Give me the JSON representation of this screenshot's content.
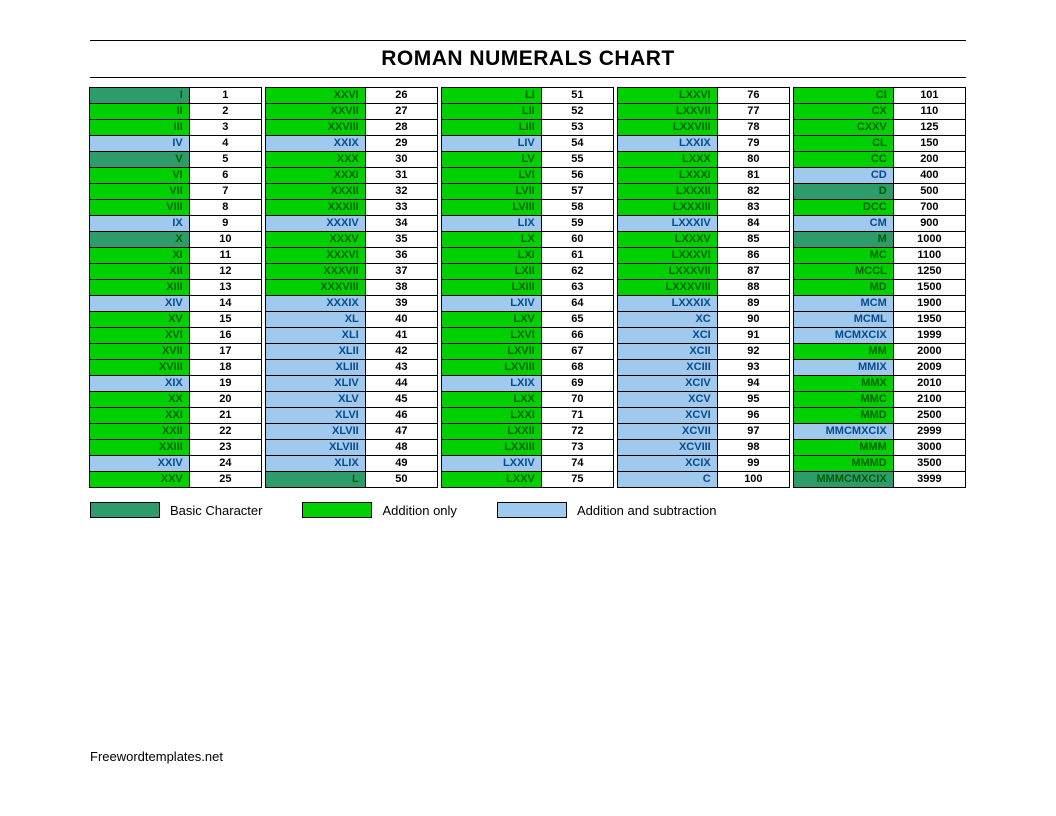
{
  "title": "ROMAN NUMERALS CHART",
  "footer": "Freewordtemplates.net",
  "colors": {
    "basic": "#2e9b6b",
    "add": "#00d000",
    "sub": "#9fc9ed",
    "text_dark": "#006000",
    "text_blue": "#0b4a8a",
    "border": "#000000",
    "background": "#ffffff"
  },
  "legend": [
    {
      "color": "basic",
      "label": "Basic Character"
    },
    {
      "color": "add",
      "label": "Addition only"
    },
    {
      "color": "sub",
      "label": "Addition and subtraction"
    }
  ],
  "columns": [
    [
      {
        "r": "I",
        "n": 1,
        "c": "basic"
      },
      {
        "r": "II",
        "n": 2,
        "c": "add"
      },
      {
        "r": "III",
        "n": 3,
        "c": "add"
      },
      {
        "r": "IV",
        "n": 4,
        "c": "sub"
      },
      {
        "r": "V",
        "n": 5,
        "c": "basic"
      },
      {
        "r": "VI",
        "n": 6,
        "c": "add"
      },
      {
        "r": "VII",
        "n": 7,
        "c": "add"
      },
      {
        "r": "VIII",
        "n": 8,
        "c": "add"
      },
      {
        "r": "IX",
        "n": 9,
        "c": "sub"
      },
      {
        "r": "X",
        "n": 10,
        "c": "basic"
      },
      {
        "r": "XI",
        "n": 11,
        "c": "add"
      },
      {
        "r": "XII",
        "n": 12,
        "c": "add"
      },
      {
        "r": "XIII",
        "n": 13,
        "c": "add"
      },
      {
        "r": "XIV",
        "n": 14,
        "c": "sub"
      },
      {
        "r": "XV",
        "n": 15,
        "c": "add"
      },
      {
        "r": "XVI",
        "n": 16,
        "c": "add"
      },
      {
        "r": "XVII",
        "n": 17,
        "c": "add"
      },
      {
        "r": "XVIII",
        "n": 18,
        "c": "add"
      },
      {
        "r": "XIX",
        "n": 19,
        "c": "sub"
      },
      {
        "r": "XX",
        "n": 20,
        "c": "add"
      },
      {
        "r": "XXI",
        "n": 21,
        "c": "add"
      },
      {
        "r": "XXII",
        "n": 22,
        "c": "add"
      },
      {
        "r": "XXIII",
        "n": 23,
        "c": "add"
      },
      {
        "r": "XXIV",
        "n": 24,
        "c": "sub"
      },
      {
        "r": "XXV",
        "n": 25,
        "c": "add"
      }
    ],
    [
      {
        "r": "XXVI",
        "n": 26,
        "c": "add"
      },
      {
        "r": "XXVII",
        "n": 27,
        "c": "add"
      },
      {
        "r": "XXVIII",
        "n": 28,
        "c": "add"
      },
      {
        "r": "XXIX",
        "n": 29,
        "c": "sub"
      },
      {
        "r": "XXX",
        "n": 30,
        "c": "add"
      },
      {
        "r": "XXXI",
        "n": 31,
        "c": "add"
      },
      {
        "r": "XXXII",
        "n": 32,
        "c": "add"
      },
      {
        "r": "XXXIII",
        "n": 33,
        "c": "add"
      },
      {
        "r": "XXXIV",
        "n": 34,
        "c": "sub"
      },
      {
        "r": "XXXV",
        "n": 35,
        "c": "add"
      },
      {
        "r": "XXXVI",
        "n": 36,
        "c": "add"
      },
      {
        "r": "XXXVII",
        "n": 37,
        "c": "add"
      },
      {
        "r": "XXXVIII",
        "n": 38,
        "c": "add"
      },
      {
        "r": "XXXIX",
        "n": 39,
        "c": "sub"
      },
      {
        "r": "XL",
        "n": 40,
        "c": "sub"
      },
      {
        "r": "XLI",
        "n": 41,
        "c": "sub"
      },
      {
        "r": "XLII",
        "n": 42,
        "c": "sub"
      },
      {
        "r": "XLIII",
        "n": 43,
        "c": "sub"
      },
      {
        "r": "XLIV",
        "n": 44,
        "c": "sub"
      },
      {
        "r": "XLV",
        "n": 45,
        "c": "sub"
      },
      {
        "r": "XLVI",
        "n": 46,
        "c": "sub"
      },
      {
        "r": "XLVII",
        "n": 47,
        "c": "sub"
      },
      {
        "r": "XLVIII",
        "n": 48,
        "c": "sub"
      },
      {
        "r": "XLIX",
        "n": 49,
        "c": "sub"
      },
      {
        "r": "L",
        "n": 50,
        "c": "basic"
      }
    ],
    [
      {
        "r": "LI",
        "n": 51,
        "c": "add"
      },
      {
        "r": "LII",
        "n": 52,
        "c": "add"
      },
      {
        "r": "LIII",
        "n": 53,
        "c": "add"
      },
      {
        "r": "LIV",
        "n": 54,
        "c": "sub"
      },
      {
        "r": "LV",
        "n": 55,
        "c": "add"
      },
      {
        "r": "LVI",
        "n": 56,
        "c": "add"
      },
      {
        "r": "LVII",
        "n": 57,
        "c": "add"
      },
      {
        "r": "LVIII",
        "n": 58,
        "c": "add"
      },
      {
        "r": "LIX",
        "n": 59,
        "c": "sub"
      },
      {
        "r": "LX",
        "n": 60,
        "c": "add"
      },
      {
        "r": "LXI",
        "n": 61,
        "c": "add"
      },
      {
        "r": "LXII",
        "n": 62,
        "c": "add"
      },
      {
        "r": "LXIII",
        "n": 63,
        "c": "add"
      },
      {
        "r": "LXIV",
        "n": 64,
        "c": "sub"
      },
      {
        "r": "LXV",
        "n": 65,
        "c": "add"
      },
      {
        "r": "LXVI",
        "n": 66,
        "c": "add"
      },
      {
        "r": "LXVII",
        "n": 67,
        "c": "add"
      },
      {
        "r": "LXVIII",
        "n": 68,
        "c": "add"
      },
      {
        "r": "LXIX",
        "n": 69,
        "c": "sub"
      },
      {
        "r": "LXX",
        "n": 70,
        "c": "add"
      },
      {
        "r": "LXXI",
        "n": 71,
        "c": "add"
      },
      {
        "r": "LXXII",
        "n": 72,
        "c": "add"
      },
      {
        "r": "LXXIII",
        "n": 73,
        "c": "add"
      },
      {
        "r": "LXXIV",
        "n": 74,
        "c": "sub"
      },
      {
        "r": "LXXV",
        "n": 75,
        "c": "add"
      }
    ],
    [
      {
        "r": "LXXVI",
        "n": 76,
        "c": "add"
      },
      {
        "r": "LXXVII",
        "n": 77,
        "c": "add"
      },
      {
        "r": "LXXVIII",
        "n": 78,
        "c": "add"
      },
      {
        "r": "LXXIX",
        "n": 79,
        "c": "sub"
      },
      {
        "r": "LXXX",
        "n": 80,
        "c": "add"
      },
      {
        "r": "LXXXI",
        "n": 81,
        "c": "add"
      },
      {
        "r": "LXXXII",
        "n": 82,
        "c": "add"
      },
      {
        "r": "LXXXIII",
        "n": 83,
        "c": "add"
      },
      {
        "r": "LXXXIV",
        "n": 84,
        "c": "sub"
      },
      {
        "r": "LXXXV",
        "n": 85,
        "c": "add"
      },
      {
        "r": "LXXXVI",
        "n": 86,
        "c": "add"
      },
      {
        "r": "LXXXVII",
        "n": 87,
        "c": "add"
      },
      {
        "r": "LXXXVIII",
        "n": 88,
        "c": "add"
      },
      {
        "r": "LXXXIX",
        "n": 89,
        "c": "sub"
      },
      {
        "r": "XC",
        "n": 90,
        "c": "sub"
      },
      {
        "r": "XCI",
        "n": 91,
        "c": "sub"
      },
      {
        "r": "XCII",
        "n": 92,
        "c": "sub"
      },
      {
        "r": "XCIII",
        "n": 93,
        "c": "sub"
      },
      {
        "r": "XCIV",
        "n": 94,
        "c": "sub"
      },
      {
        "r": "XCV",
        "n": 95,
        "c": "sub"
      },
      {
        "r": "XCVI",
        "n": 96,
        "c": "sub"
      },
      {
        "r": "XCVII",
        "n": 97,
        "c": "sub"
      },
      {
        "r": "XCVIII",
        "n": 98,
        "c": "sub"
      },
      {
        "r": "XCIX",
        "n": 99,
        "c": "sub"
      },
      {
        "r": "C",
        "n": 100,
        "c": "sub"
      }
    ],
    [
      {
        "r": "CI",
        "n": 101,
        "c": "add"
      },
      {
        "r": "CX",
        "n": 110,
        "c": "add"
      },
      {
        "r": "CXXV",
        "n": 125,
        "c": "add"
      },
      {
        "r": "CL",
        "n": 150,
        "c": "add"
      },
      {
        "r": "CC",
        "n": 200,
        "c": "add"
      },
      {
        "r": "CD",
        "n": 400,
        "c": "sub"
      },
      {
        "r": "D",
        "n": 500,
        "c": "basic"
      },
      {
        "r": "DCC",
        "n": 700,
        "c": "add"
      },
      {
        "r": "CM",
        "n": 900,
        "c": "sub"
      },
      {
        "r": "M",
        "n": 1000,
        "c": "basic"
      },
      {
        "r": "MC",
        "n": 1100,
        "c": "add"
      },
      {
        "r": "MCCL",
        "n": 1250,
        "c": "add"
      },
      {
        "r": "MD",
        "n": 1500,
        "c": "add"
      },
      {
        "r": "MCM",
        "n": 1900,
        "c": "sub"
      },
      {
        "r": "MCML",
        "n": 1950,
        "c": "sub"
      },
      {
        "r": "MCMXCIX",
        "n": 1999,
        "c": "sub"
      },
      {
        "r": "MM",
        "n": 2000,
        "c": "add"
      },
      {
        "r": "MMIX",
        "n": 2009,
        "c": "sub"
      },
      {
        "r": "MMX",
        "n": 2010,
        "c": "add"
      },
      {
        "r": "MMC",
        "n": 2100,
        "c": "add"
      },
      {
        "r": "MMD",
        "n": 2500,
        "c": "add"
      },
      {
        "r": "MMCMXCIX",
        "n": 2999,
        "c": "sub"
      },
      {
        "r": "MMM",
        "n": 3000,
        "c": "add"
      },
      {
        "r": "MMMD",
        "n": 3500,
        "c": "add"
      },
      {
        "r": "MMMCMXCIX",
        "n": 3999,
        "c": "basic"
      }
    ]
  ]
}
